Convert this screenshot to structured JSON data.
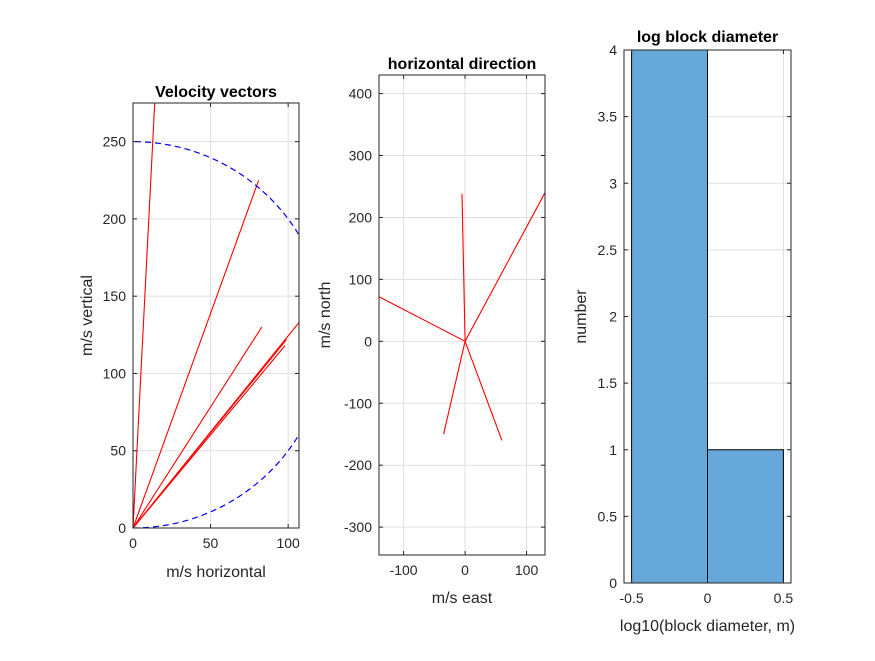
{
  "chart_data": [
    {
      "type": "line",
      "title": "Velocity vectors",
      "xlabel": "m/s horizontal",
      "ylabel": "m/s vertical",
      "xlim": [
        0,
        107
      ],
      "ylim": [
        0,
        275
      ],
      "xticks": [
        0,
        50,
        100
      ],
      "xtick_labels": [
        "0",
        "50",
        "100"
      ],
      "yticks": [
        0,
        50,
        100,
        150,
        200,
        250
      ],
      "ytick_labels": [
        "0",
        "50",
        "100",
        "150",
        "200",
        "250"
      ],
      "grid": true,
      "series": [
        {
          "style": "red-solid",
          "x": [
            0,
            14
          ],
          "y": [
            0,
            275
          ]
        },
        {
          "style": "red-solid",
          "x": [
            0,
            81
          ],
          "y": [
            0,
            225
          ]
        },
        {
          "style": "red-solid",
          "x": [
            0,
            83
          ],
          "y": [
            0,
            130
          ]
        },
        {
          "style": "red-solid",
          "x": [
            0,
            107
          ],
          "y": [
            0,
            133
          ]
        },
        {
          "style": "red-solid",
          "x": [
            0,
            99
          ],
          "y": [
            0,
            122
          ]
        },
        {
          "style": "red-solid",
          "x": [
            0,
            98
          ],
          "y": [
            0,
            118
          ]
        },
        {
          "style": "blue-dashed",
          "curve": "semicircle",
          "center": [
            0,
            125
          ],
          "radius": 125
        }
      ],
      "colors": {
        "vectors": "#ff0000",
        "envelope": "#0000ff"
      }
    },
    {
      "type": "line",
      "title": "horizontal direction",
      "xlabel": "m/s east",
      "ylabel": "m/s north",
      "xlim": [
        -140,
        130
      ],
      "ylim": [
        -345,
        430
      ],
      "xticks": [
        -100,
        0,
        100
      ],
      "xtick_labels": [
        "-100",
        "0",
        "100"
      ],
      "yticks": [
        -300,
        -200,
        -100,
        0,
        100,
        200,
        300,
        400
      ],
      "ytick_labels": [
        "-300",
        "-200",
        "-100",
        "0",
        "100",
        "200",
        "300",
        "400"
      ],
      "grid": true,
      "series": [
        {
          "style": "red-solid",
          "x": [
            0,
            -5
          ],
          "y": [
            0,
            238
          ]
        },
        {
          "style": "red-solid",
          "x": [
            0,
            130
          ],
          "y": [
            0,
            240
          ]
        },
        {
          "style": "red-solid",
          "x": [
            0,
            -140
          ],
          "y": [
            0,
            72
          ]
        },
        {
          "style": "red-solid",
          "x": [
            0,
            -35
          ],
          "y": [
            0,
            -150
          ]
        },
        {
          "style": "red-solid",
          "x": [
            0,
            60
          ],
          "y": [
            0,
            -160
          ]
        }
      ],
      "colors": {
        "vectors": "#ff0000"
      }
    },
    {
      "type": "bar",
      "title": "log block diameter",
      "xlabel": "log10(block diameter, m)",
      "ylabel": "number",
      "xlim": [
        -0.55,
        0.55
      ],
      "ylim": [
        0,
        4
      ],
      "xticks": [
        -0.5,
        0,
        0.5
      ],
      "xtick_labels": [
        "-0.5",
        "0",
        "0.5"
      ],
      "yticks": [
        0,
        0.5,
        1,
        1.5,
        2,
        2.5,
        3,
        3.5,
        4
      ],
      "ytick_labels": [
        "0",
        "0.5",
        "1",
        "1.5",
        "2",
        "2.5",
        "3",
        "3.5",
        "4"
      ],
      "grid": true,
      "bins": [
        {
          "from": -0.5,
          "to": 0,
          "count": 4
        },
        {
          "from": 0,
          "to": 0.5,
          "count": 1
        }
      ],
      "colors": {
        "bar_fill": "#66a8d9",
        "bar_edge": "#000000"
      }
    }
  ]
}
